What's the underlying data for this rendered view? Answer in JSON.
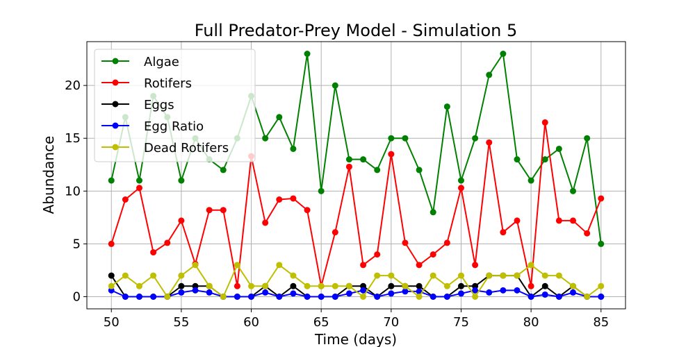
{
  "chart_data": {
    "type": "line",
    "title": "Full Predator-Prey Model - Simulation 5",
    "xlabel": "Time (days)",
    "ylabel": "Abundance",
    "xlim": [
      48.25,
      86.75
    ],
    "ylim": [
      -1.15,
      24.15
    ],
    "xticks": [
      50,
      55,
      60,
      65,
      70,
      75,
      80,
      85
    ],
    "yticks": [
      0,
      5,
      10,
      15,
      20
    ],
    "grid": true,
    "legend_position": "top-left",
    "x": [
      50,
      51,
      52,
      53,
      54,
      55,
      56,
      57,
      58,
      59,
      60,
      61,
      62,
      63,
      64,
      65,
      66,
      67,
      68,
      69,
      70,
      71,
      72,
      73,
      74,
      75,
      76,
      77,
      78,
      79,
      80,
      81,
      82,
      83,
      84,
      85
    ],
    "series": [
      {
        "name": "Algae",
        "color": "#008000",
        "values": [
          11,
          17,
          11,
          19,
          17,
          11,
          15,
          13,
          12,
          15,
          19,
          15,
          17,
          14,
          23,
          10,
          20,
          13,
          13,
          12,
          15,
          15,
          12,
          8,
          18,
          11,
          15,
          21,
          23,
          13,
          11,
          13,
          14,
          10,
          15,
          5
        ]
      },
      {
        "name": "Rotifers",
        "color": "#ff0000",
        "values": [
          5,
          9.2,
          10.3,
          4.2,
          5.1,
          7.2,
          3.1,
          8.2,
          8.2,
          1,
          13.3,
          7,
          9.2,
          9.3,
          8.2,
          1,
          6.1,
          12.3,
          3,
          4,
          13.5,
          5.1,
          3,
          4,
          5.1,
          10.3,
          3,
          14.6,
          6.1,
          7.2,
          1,
          16.5,
          7.2,
          7.2,
          6,
          9.3
        ]
      },
      {
        "name": "Eggs",
        "color": "#000000",
        "values": [
          2,
          0,
          0,
          0,
          0,
          1,
          1,
          1,
          0,
          0,
          0,
          1,
          0,
          1,
          0,
          0,
          0,
          1,
          1,
          0,
          1,
          1,
          1,
          0,
          0,
          1,
          1,
          2,
          2,
          2,
          0,
          1,
          0,
          1,
          0,
          0
        ]
      },
      {
        "name": "Egg Ratio",
        "color": "#0000ff",
        "values": [
          0.6,
          0,
          0,
          0,
          0,
          0.4,
          0.6,
          0.4,
          0,
          0,
          0,
          0.4,
          0,
          0.3,
          0,
          0,
          0,
          0.3,
          0.6,
          0,
          0.3,
          0.5,
          0.5,
          0,
          0,
          0.3,
          0.6,
          0.4,
          0.6,
          0.6,
          0,
          0.2,
          0,
          0.4,
          0,
          0
        ]
      },
      {
        "name": "Dead Rotifers",
        "color": "#bfbf00",
        "values": [
          1,
          2,
          1,
          2,
          0,
          2,
          3,
          1,
          0,
          3,
          1,
          1,
          3,
          2,
          1,
          1,
          1,
          1,
          0,
          2,
          2,
          1,
          0,
          2,
          1,
          2,
          0,
          2,
          2,
          2,
          3,
          2,
          2,
          1,
          0,
          1
        ]
      }
    ]
  }
}
